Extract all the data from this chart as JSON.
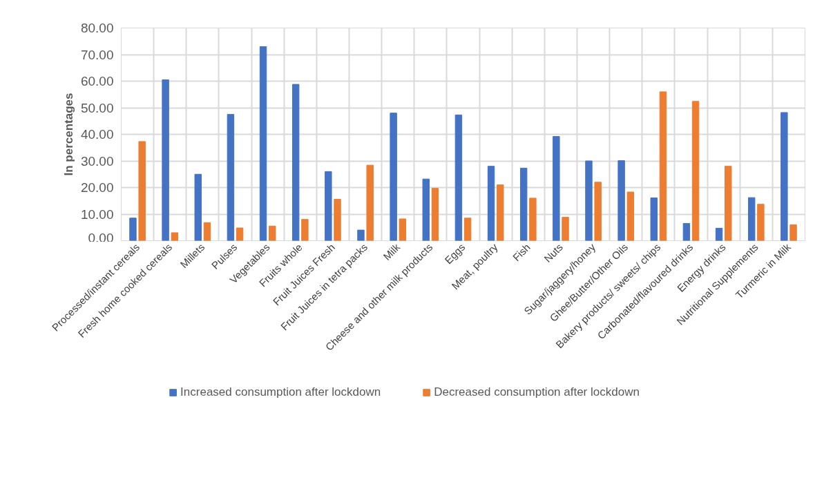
{
  "chart_data": {
    "type": "bar",
    "ylabel": "In percentages",
    "categories": [
      "Processed/instant cereals",
      "Fresh home cooked cereals",
      "Millets",
      "Pulses",
      "Vegetables",
      "Fruits whole",
      "Fruit Juices Fresh",
      "Fruit Juices in tetra packs",
      "Milk",
      "Cheese and other milk products",
      "Eggs",
      "Meat, poultry",
      "Fish",
      "Nuts",
      "Sugar/jaggery/honey",
      "Ghee/Butter/Other Oils",
      "Bakery products/ sweets/ chips",
      "Carbonated/flavoured drinks",
      "Energy drinks",
      "Nutritional Supplements",
      "Turmeric in Milk"
    ],
    "series": [
      {
        "name": "Increased consumption after lockdown",
        "color": "#4472c4",
        "values": [
          8.5,
          60.5,
          25,
          47.5,
          73,
          58.8,
          26,
          4,
          48,
          23.2,
          47.3,
          28,
          27.3,
          39.2,
          30,
          30.1,
          16.1,
          6.5,
          4.7,
          16.2,
          48.2
        ]
      },
      {
        "name": "Decreased consumption after lockdown",
        "color": "#ed7d31",
        "values": [
          37.3,
          3,
          6.8,
          4.8,
          5.5,
          8,
          15.6,
          28.4,
          8.2,
          19.7,
          8.5,
          21,
          16,
          8.8,
          22,
          18.3,
          56,
          52.4,
          28,
          13.7,
          6
        ]
      }
    ],
    "ylim": [
      0,
      80
    ],
    "yticks": [
      {
        "value": 0,
        "label": "0.00"
      },
      {
        "value": 10,
        "label": "10.00"
      },
      {
        "value": 20,
        "label": "20.00"
      },
      {
        "value": 30,
        "label": "30.00"
      },
      {
        "value": 40,
        "label": "40.00"
      },
      {
        "value": 50,
        "label": "50.00"
      },
      {
        "value": 60,
        "label": "60.00"
      },
      {
        "value": 70,
        "label": "70.00"
      },
      {
        "value": 80,
        "label": "80.00"
      }
    ],
    "grid": true,
    "legend": "bottom"
  }
}
